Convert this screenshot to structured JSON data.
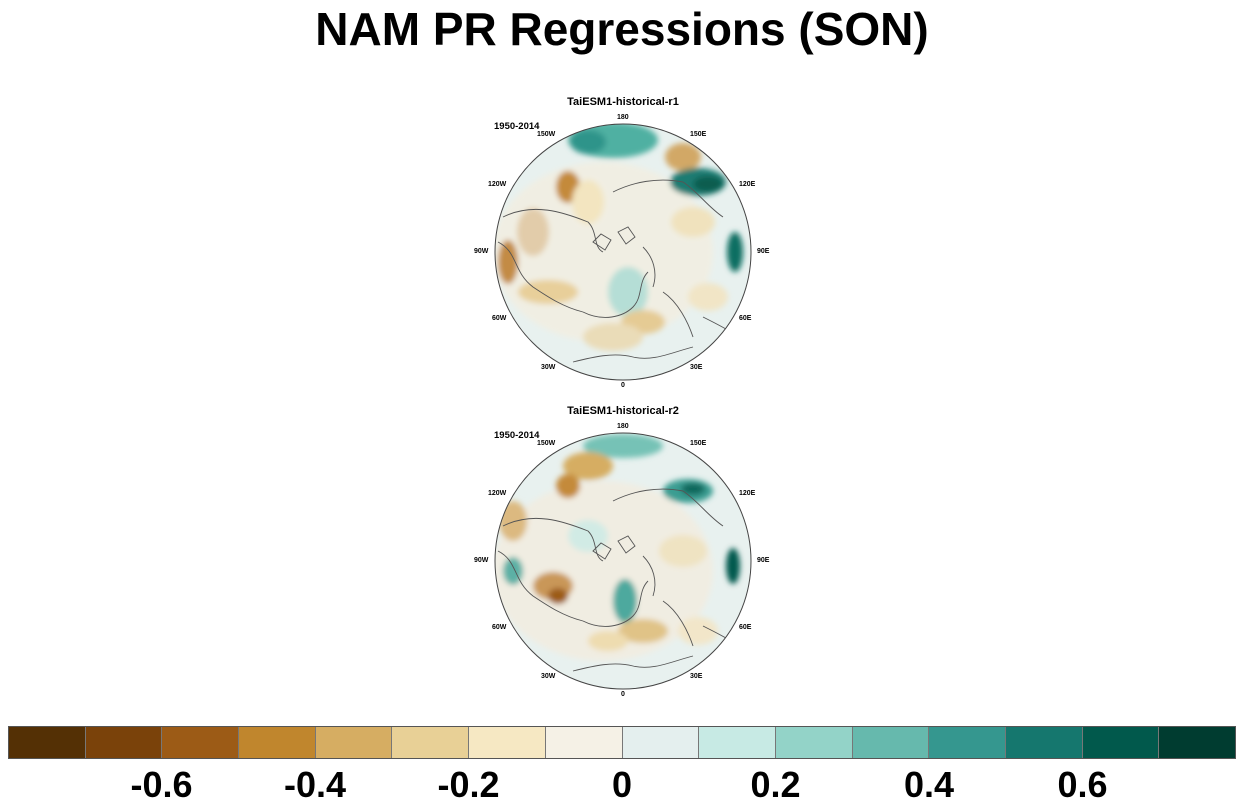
{
  "title": "NAM PR Regressions (SON)",
  "panels": [
    {
      "title": "TaiESM1-historical-r1",
      "period": "1950-2014",
      "lon_labels": [
        "180",
        "150E",
        "120E",
        "90E",
        "60E",
        "30E",
        "0",
        "30W",
        "60W",
        "90W",
        "120W",
        "150W"
      ]
    },
    {
      "title": "TaiESM1-historical-r2",
      "period": "1950-2014",
      "lon_labels": [
        "180",
        "150E",
        "120E",
        "90E",
        "60E",
        "30E",
        "0",
        "30W",
        "60W",
        "90W",
        "120W",
        "150W"
      ]
    }
  ],
  "colorbar": {
    "colors": [
      "#543005",
      "#7a420a",
      "#9c5b16",
      "#c0862d",
      "#d6ad62",
      "#e8d096",
      "#f6e8c3",
      "#f5f1e6",
      "#e4efee",
      "#c7eae4",
      "#93d3c8",
      "#66b9ad",
      "#35978f",
      "#15776e",
      "#01594c",
      "#003c30"
    ],
    "tick_labels": [
      "-0.6",
      "-0.4",
      "-0.2",
      "0",
      "0.2",
      "0.4",
      "0.6"
    ]
  }
}
